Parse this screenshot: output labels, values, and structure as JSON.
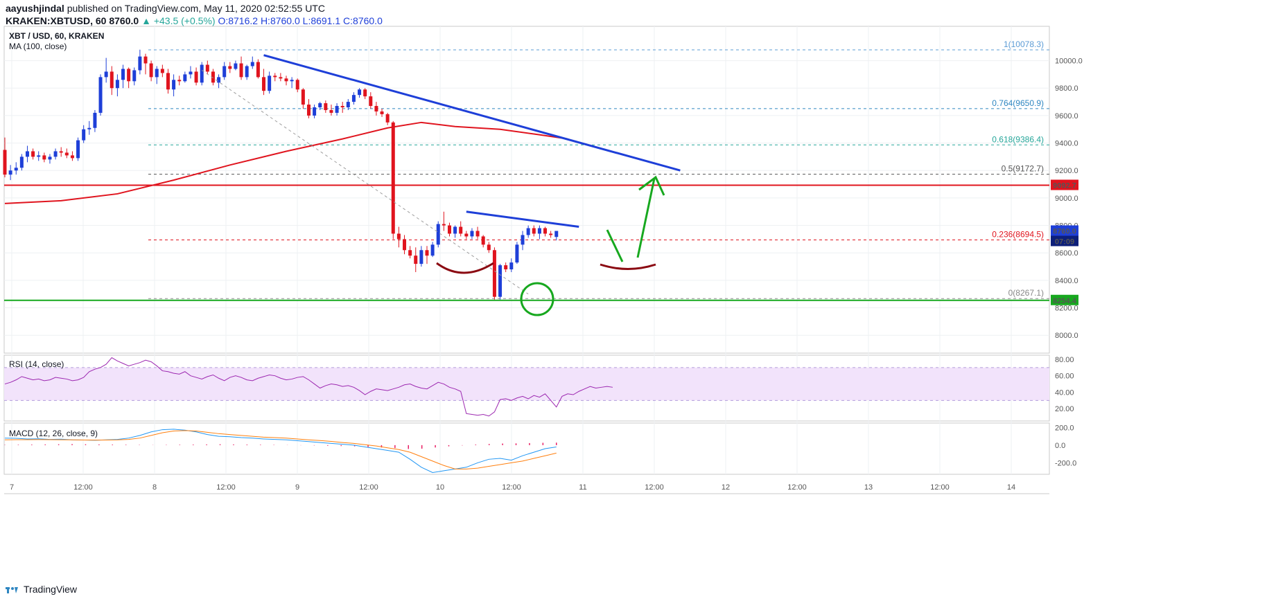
{
  "header": {
    "author": "aayushjindal",
    "publish_text": "published on TradingView.com, May 11, 2020 02:52:55 UTC",
    "symbol": "KRAKEN:XBTUSD, 60",
    "last": "8760.0",
    "change": "+43.5 (+0.5%)",
    "ohlc_text": "O:8716.2 H:8760.0 L:8691.1 C:8760.0"
  },
  "footer": {
    "brand": "TradingView"
  },
  "colors": {
    "up": "#1e3fd8",
    "down": "#e0141e",
    "ma": "#e0141e",
    "trendline": "#1e3fd8",
    "support": "#17a81f",
    "resistance": "#e0141e",
    "rsi": "#9c27b0",
    "macd": "#2196f3",
    "signal": "#ff7f0e"
  },
  "chart_data": [
    {
      "type": "candlestick",
      "title": "XBT / USD, 60, KRAKEN",
      "indicator_label": "MA (100, close)",
      "ylim": [
        7870,
        10250
      ],
      "yticks": [
        "10000.0",
        "9800.0",
        "9600.0",
        "9400.0",
        "9200.0",
        "9000.0",
        "8800.0",
        "8600.0",
        "8400.0",
        "8200.0",
        "8000.0"
      ],
      "x_ticks": [
        "7",
        "12:00",
        "8",
        "12:00",
        "9",
        "12:00",
        "10",
        "12:00",
        "11",
        "12:00",
        "12",
        "12:00",
        "13",
        "12:00",
        "14"
      ],
      "grid": true,
      "ohlc": [
        [
          9350,
          9440,
          9150,
          9170
        ],
        [
          9170,
          9240,
          9130,
          9200
        ],
        [
          9200,
          9260,
          9170,
          9220
        ],
        [
          9220,
          9320,
          9200,
          9300
        ],
        [
          9300,
          9380,
          9260,
          9340
        ],
        [
          9340,
          9360,
          9280,
          9300
        ],
        [
          9300,
          9340,
          9270,
          9310
        ],
        [
          9310,
          9330,
          9260,
          9280
        ],
        [
          9280,
          9320,
          9250,
          9300
        ],
        [
          9300,
          9360,
          9280,
          9340
        ],
        [
          9340,
          9370,
          9300,
          9330
        ],
        [
          9330,
          9360,
          9290,
          9310
        ],
        [
          9310,
          9340,
          9270,
          9290
        ],
        [
          9290,
          9440,
          9270,
          9420
        ],
        [
          9420,
          9530,
          9400,
          9500
        ],
        [
          9500,
          9560,
          9460,
          9510
        ],
        [
          9510,
          9640,
          9480,
          9620
        ],
        [
          9620,
          9900,
          9600,
          9880
        ],
        [
          9880,
          10020,
          9840,
          9920
        ],
        [
          9920,
          9960,
          9750,
          9800
        ],
        [
          9800,
          9900,
          9740,
          9860
        ],
        [
          9860,
          9970,
          9800,
          9940
        ],
        [
          9940,
          9950,
          9800,
          9850
        ],
        [
          9850,
          9950,
          9820,
          9930
        ],
        [
          9930,
          10080,
          9900,
          10030
        ],
        [
          10030,
          10050,
          9900,
          9980
        ],
        [
          9980,
          10000,
          9850,
          9880
        ],
        [
          9880,
          9960,
          9830,
          9940
        ],
        [
          9940,
          9970,
          9880,
          9910
        ],
        [
          9910,
          9940,
          9760,
          9790
        ],
        [
          9790,
          9900,
          9740,
          9860
        ],
        [
          9860,
          9890,
          9820,
          9850
        ],
        [
          9850,
          9920,
          9840,
          9900
        ],
        [
          9900,
          9960,
          9870,
          9920
        ],
        [
          9920,
          9950,
          9820,
          9840
        ],
        [
          9840,
          9990,
          9820,
          9970
        ],
        [
          9970,
          10000,
          9900,
          9920
        ],
        [
          9920,
          9940,
          9820,
          9840
        ],
        [
          9840,
          9900,
          9800,
          9880
        ],
        [
          9880,
          9990,
          9860,
          9960
        ],
        [
          9960,
          9990,
          9910,
          9940
        ],
        [
          9940,
          10000,
          9930,
          9980
        ],
        [
          9980,
          10030,
          9860,
          9880
        ],
        [
          9880,
          9970,
          9860,
          9960
        ],
        [
          9960,
          10030,
          9940,
          9990
        ],
        [
          9990,
          10010,
          9870,
          9880
        ],
        [
          9880,
          9940,
          9750,
          9780
        ],
        [
          9780,
          9920,
          9760,
          9890
        ],
        [
          9890,
          9910,
          9850,
          9880
        ],
        [
          9880,
          9910,
          9850,
          9870
        ],
        [
          9870,
          9890,
          9820,
          9850
        ],
        [
          9850,
          9880,
          9800,
          9860
        ],
        [
          9860,
          9870,
          9770,
          9790
        ],
        [
          9790,
          9800,
          9650,
          9680
        ],
        [
          9680,
          9720,
          9580,
          9600
        ],
        [
          9600,
          9680,
          9580,
          9660
        ],
        [
          9660,
          9700,
          9640,
          9690
        ],
        [
          9690,
          9710,
          9620,
          9640
        ],
        [
          9640,
          9680,
          9600,
          9620
        ],
        [
          9620,
          9690,
          9600,
          9670
        ],
        [
          9670,
          9700,
          9620,
          9660
        ],
        [
          9660,
          9720,
          9640,
          9700
        ],
        [
          9700,
          9770,
          9680,
          9750
        ],
        [
          9750,
          9800,
          9730,
          9790
        ],
        [
          9790,
          9800,
          9720,
          9740
        ],
        [
          9740,
          9770,
          9650,
          9670
        ],
        [
          9670,
          9700,
          9600,
          9630
        ],
        [
          9630,
          9650,
          9590,
          9610
        ],
        [
          9610,
          9620,
          9530,
          9550
        ],
        [
          9550,
          9560,
          8700,
          8740
        ],
        [
          8740,
          8790,
          8640,
          8700
        ],
        [
          8700,
          8730,
          8590,
          8620
        ],
        [
          8620,
          8650,
          8560,
          8580
        ],
        [
          8580,
          8640,
          8460,
          8520
        ],
        [
          8520,
          8650,
          8500,
          8620
        ],
        [
          8620,
          8650,
          8520,
          8580
        ],
        [
          8580,
          8680,
          8570,
          8660
        ],
        [
          8660,
          8830,
          8640,
          8810
        ],
        [
          8810,
          8900,
          8760,
          8800
        ],
        [
          8800,
          8820,
          8720,
          8740
        ],
        [
          8740,
          8800,
          8710,
          8790
        ],
        [
          8790,
          8830,
          8720,
          8740
        ],
        [
          8740,
          8760,
          8700,
          8720
        ],
        [
          8720,
          8780,
          8700,
          8760
        ],
        [
          8760,
          8790,
          8700,
          8720
        ],
        [
          8720,
          8730,
          8640,
          8660
        ],
        [
          8660,
          8680,
          8600,
          8620
        ],
        [
          8620,
          8640,
          8260,
          8280
        ],
        [
          8280,
          8520,
          8260,
          8510
        ],
        [
          8510,
          8530,
          8460,
          8480
        ],
        [
          8480,
          8560,
          8460,
          8530
        ],
        [
          8530,
          8680,
          8520,
          8660
        ],
        [
          8660,
          8760,
          8620,
          8730
        ],
        [
          8730,
          8800,
          8710,
          8780
        ],
        [
          8780,
          8800,
          8720,
          8740
        ],
        [
          8740,
          8800,
          8700,
          8780
        ],
        [
          8780,
          8790,
          8720,
          8740
        ],
        [
          8740,
          8760,
          8710,
          8730
        ],
        [
          8716,
          8760,
          8691,
          8760
        ]
      ],
      "ma100": {
        "name": "MA (100, close)",
        "points": [
          [
            0,
            8960
          ],
          [
            10,
            8980
          ],
          [
            20,
            9030
          ],
          [
            30,
            9130
          ],
          [
            40,
            9240
          ],
          [
            50,
            9340
          ],
          [
            60,
            9430
          ],
          [
            68,
            9510
          ],
          [
            74,
            9550
          ],
          [
            80,
            9520
          ],
          [
            88,
            9500
          ],
          [
            95,
            9460
          ],
          [
            100,
            9430
          ]
        ]
      },
      "price_labels": {
        "resistance": "9092.7",
        "current": "8760.0",
        "countdown": "07:09",
        "support": "8254.4"
      },
      "horizontal_lines": {
        "resistance": 9092.7,
        "support": 8254.4
      },
      "fibonacci": [
        {
          "label": "1(10078.3)",
          "value": 10078.3,
          "color": "#5b9bd5"
        },
        {
          "label": "0.764(9650.9)",
          "value": 9650.9,
          "color": "#2e86c1"
        },
        {
          "label": "0.618(9386.4)",
          "value": 9386.4,
          "color": "#26a69a"
        },
        {
          "label": "0.5(9172.7)",
          "value": 9172.7,
          "color": "#555555"
        },
        {
          "label": "0.236(8694.5)",
          "value": 8694.5,
          "color": "#e0141e"
        },
        {
          "label": "0(8267.1)",
          "value": 8267.1,
          "color": "#888888"
        }
      ],
      "trendlines": [
        {
          "from": [
            46,
            10040
          ],
          "to": [
            120,
            9200
          ],
          "color": "#1e3fd8"
        },
        {
          "from": [
            82,
            8900
          ],
          "to": [
            102,
            8790
          ],
          "color": "#1e3fd8"
        }
      ]
    },
    {
      "type": "line",
      "title": "RSI (14, close)",
      "ylim": [
        5,
        85
      ],
      "yticks": [
        "80.00",
        "60.00",
        "40.00",
        "20.00"
      ],
      "band": [
        30,
        70
      ],
      "values": [
        50,
        52,
        55,
        59,
        57,
        55,
        56,
        54,
        55,
        58,
        57,
        56,
        54,
        55,
        58,
        65,
        68,
        70,
        74,
        82,
        78,
        75,
        72,
        74,
        76,
        79,
        77,
        72,
        66,
        65,
        63,
        62,
        65,
        60,
        58,
        56,
        59,
        61,
        57,
        54,
        58,
        60,
        58,
        55,
        54,
        57,
        59,
        61,
        60,
        57,
        55,
        56,
        58,
        59,
        55,
        50,
        45,
        48,
        50,
        49,
        47,
        48,
        46,
        42,
        37,
        41,
        44,
        43,
        42,
        44,
        46,
        49,
        50,
        47,
        45,
        44,
        48,
        52,
        50,
        46,
        44,
        41,
        14,
        13,
        12,
        13,
        11,
        16,
        31,
        32,
        30,
        33,
        35,
        32,
        36,
        34,
        38,
        30,
        22,
        35,
        38,
        37,
        41,
        44,
        47,
        45,
        46,
        47,
        46
      ]
    },
    {
      "type": "line",
      "title": "MACD (12, 26, close, 9)",
      "ylim": [
        -330,
        250
      ],
      "yticks": [
        "200.0",
        "0.0",
        "-200.0"
      ],
      "macd": [
        80,
        78,
        70,
        72,
        65,
        68,
        60,
        58,
        55,
        60,
        65,
        80,
        110,
        150,
        175,
        180,
        170,
        150,
        120,
        100,
        95,
        85,
        80,
        70,
        65,
        60,
        50,
        40,
        30,
        20,
        10,
        0,
        -20,
        -40,
        -60,
        -80,
        -160,
        -250,
        -310,
        -290,
        -270,
        -250,
        -200,
        -160,
        -150,
        -170,
        -120,
        -80,
        -40,
        -20
      ],
      "signal": [
        60,
        62,
        62,
        63,
        62,
        61,
        60,
        58,
        57,
        58,
        60,
        65,
        80,
        110,
        140,
        160,
        165,
        160,
        145,
        130,
        120,
        110,
        100,
        90,
        85,
        80,
        70,
        60,
        52,
        42,
        30,
        20,
        5,
        -10,
        -30,
        -50,
        -80,
        -130,
        -180,
        -230,
        -270,
        -270,
        -260,
        -240,
        -220,
        -200,
        -180,
        -150,
        -120,
        -90
      ],
      "histogram": [
        10,
        15,
        20,
        25,
        30,
        35,
        30,
        25,
        20,
        15,
        10,
        5,
        10,
        15,
        20,
        25,
        30,
        25,
        20,
        15,
        10,
        5,
        -5,
        -10,
        -20,
        -30,
        -40,
        -60,
        -80,
        -100,
        -130,
        -120,
        -80,
        -40,
        -10,
        20,
        40,
        55,
        60,
        70,
        80,
        85
      ]
    }
  ]
}
